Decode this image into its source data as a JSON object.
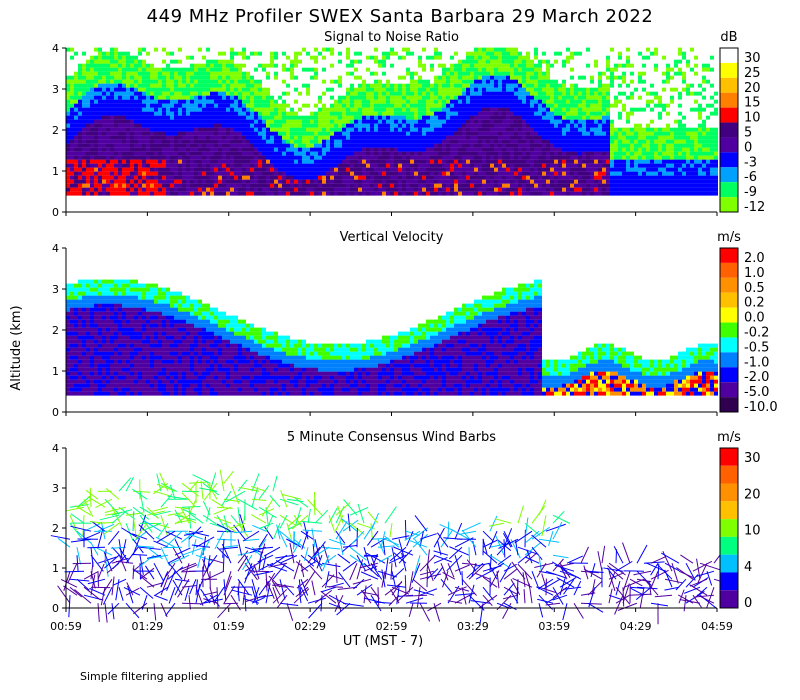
{
  "title": "449 MHz Profiler SWEX Santa Barbara 29 March 2022",
  "xlabel": "UT  (MST - 7)",
  "ylabel": "Altitude (km)",
  "footer": "Simple filtering applied",
  "x_ticks": [
    "00:59",
    "01:29",
    "01:59",
    "02:29",
    "02:59",
    "03:29",
    "03:59",
    "04:29",
    "04:59"
  ],
  "y_ticks": [
    "0",
    "1",
    "2",
    "3",
    "4"
  ],
  "panels": [
    {
      "id": "snr",
      "title": "Signal to Noise Ratio",
      "unit": "dB",
      "colorbar": {
        "labels": [
          "30",
          "25",
          "20",
          "15",
          "10",
          "5",
          "0",
          "-3",
          "-6",
          "-9",
          "-12"
        ],
        "colors": [
          "#ffffff",
          "#ffff00",
          "#ffc000",
          "#ff8000",
          "#ff0000",
          "#400080",
          "#5000a0",
          "#0000ff",
          "#00a0ff",
          "#00ff60",
          "#80ff00"
        ]
      }
    },
    {
      "id": "vv",
      "title": "Vertical Velocity",
      "unit": "m/s",
      "colorbar": {
        "labels": [
          "2.0",
          "1.0",
          "0.5",
          "0.2",
          "0.0",
          "-0.2",
          "-0.5",
          "-1.0",
          "-2.0",
          "-5.0",
          "-10.0"
        ],
        "colors": [
          "#ff0000",
          "#ff6000",
          "#ff9000",
          "#ffc000",
          "#ffff00",
          "#40ff00",
          "#00ffff",
          "#0080ff",
          "#0000ff",
          "#5000a0",
          "#300050"
        ]
      }
    },
    {
      "id": "wind",
      "title": "5 Minute Consensus Wind Barbs",
      "unit": "m/s",
      "colorbar": {
        "labels": [
          "30",
          "20",
          "10",
          "4",
          "0"
        ],
        "colors": [
          "#ff0000",
          "#ff6000",
          "#ff9000",
          "#ffc000",
          "#80ff00",
          "#00ff80",
          "#00c0ff",
          "#0000ff",
          "#5000a0"
        ]
      }
    }
  ],
  "chart_data": {
    "type": "heatmap",
    "x_range": [
      "00:59",
      "04:59"
    ],
    "y_range": [
      0,
      4
    ],
    "panels": [
      "Signal to Noise Ratio",
      "Vertical Velocity",
      "5 Minute Consensus Wind Barbs"
    ]
  }
}
